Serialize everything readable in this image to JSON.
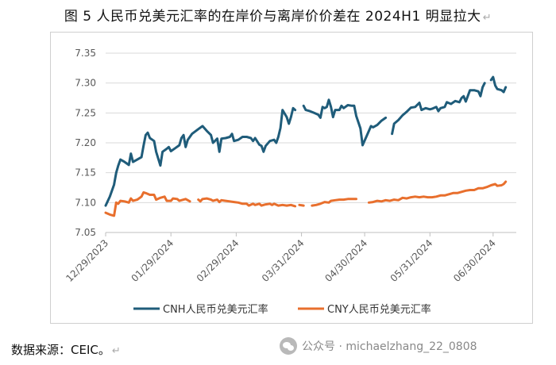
{
  "title": "图 5   人民币兑美元汇率的在岸价与离岸价价差在 2024H1 明显拉大",
  "source": "数据来源：CEIC。",
  "watermark": "公众号 · michaelzhang_22_0808",
  "chart_data": {
    "type": "line",
    "x_tick_labels": [
      "12/29/2023",
      "01/29/2024",
      "02/29/2024",
      "03/31/2024",
      "04/30/2024",
      "05/31/2024",
      "06/30/2024"
    ],
    "x_tick_days": [
      0,
      31,
      62,
      93,
      123,
      154,
      184
    ],
    "xlim_days": [
      0,
      195
    ],
    "y_ticks": [
      7.05,
      7.1,
      7.15,
      7.2,
      7.25,
      7.3,
      7.35
    ],
    "y_tick_labels": [
      "7.05",
      "7.10",
      "7.15",
      "7.20",
      "7.25",
      "7.30",
      "7.35"
    ],
    "ylim": [
      7.05,
      7.35
    ],
    "grid": "horizontal",
    "legend_position": "bottom",
    "series": [
      {
        "name": "CNH人民币兑美元汇率",
        "color": "#1f5c7a",
        "segments": [
          [
            [
              0,
              7.095
            ],
            [
              2,
              7.11
            ],
            [
              4,
              7.13
            ],
            [
              5,
              7.15
            ],
            [
              6,
              7.162
            ],
            [
              7,
              7.172
            ],
            [
              9,
              7.168
            ],
            [
              11,
              7.163
            ],
            [
              12,
              7.182
            ],
            [
              13,
              7.168
            ],
            [
              15,
              7.172
            ],
            [
              17,
              7.176
            ],
            [
              18,
              7.195
            ],
            [
              19,
              7.213
            ],
            [
              20,
              7.217
            ],
            [
              21,
              7.208
            ],
            [
              23,
              7.203
            ],
            [
              24,
              7.185
            ],
            [
              26,
              7.162
            ],
            [
              27,
              7.185
            ],
            [
              29,
              7.19
            ],
            [
              30,
              7.193
            ],
            [
              31,
              7.186
            ],
            [
              33,
              7.191
            ],
            [
              35,
              7.196
            ],
            [
              36,
              7.208
            ],
            [
              37,
              7.213
            ],
            [
              38,
              7.193
            ],
            [
              39,
              7.205
            ],
            [
              41,
              7.215
            ],
            [
              44,
              7.223
            ],
            [
              46,
              7.228
            ],
            [
              48,
              7.22
            ],
            [
              50,
              7.213
            ],
            [
              51,
              7.2
            ],
            [
              53,
              7.207
            ],
            [
              54,
              7.185
            ],
            [
              55,
              7.207
            ],
            [
              57,
              7.208
            ],
            [
              59,
              7.21
            ],
            [
              60,
              7.215
            ],
            [
              61,
              7.203
            ],
            [
              63,
              7.205
            ],
            [
              65,
              7.21
            ],
            [
              67,
              7.21
            ],
            [
              69,
              7.208
            ],
            [
              70,
              7.203
            ],
            [
              71,
              7.208
            ],
            [
              73,
              7.197
            ],
            [
              74,
              7.195
            ],
            [
              75,
              7.185
            ],
            [
              76,
              7.195
            ],
            [
              78,
              7.203
            ],
            [
              80,
              7.205
            ],
            [
              81,
              7.2
            ],
            [
              82,
              7.21
            ],
            [
              83,
              7.225
            ],
            [
              84,
              7.255
            ],
            [
              86,
              7.243
            ],
            [
              87,
              7.232
            ],
            [
              88,
              7.243
            ],
            [
              89,
              7.258
            ],
            [
              90,
              7.255
            ]
          ],
          [
            [
              94,
              7.262
            ],
            [
              95,
              7.255
            ],
            [
              97,
              7.253
            ],
            [
              99,
              7.25
            ],
            [
              101,
              7.247
            ],
            [
              102,
              7.242
            ],
            [
              103,
              7.26
            ],
            [
              104,
              7.258
            ],
            [
              105,
              7.26
            ],
            [
              106,
              7.272
            ],
            [
              107,
              7.26
            ],
            [
              108,
              7.243
            ],
            [
              109,
              7.255
            ],
            [
              111,
              7.255
            ],
            [
              112,
              7.262
            ],
            [
              113,
              7.258
            ],
            [
              115,
              7.263
            ],
            [
              117,
              7.262
            ],
            [
              118,
              7.262
            ],
            [
              119,
              7.245
            ],
            [
              121,
              7.224
            ],
            [
              122,
              7.196
            ],
            [
              124,
              7.212
            ],
            [
              126,
              7.228
            ],
            [
              127,
              7.226
            ],
            [
              129,
              7.23
            ],
            [
              131,
              7.237
            ],
            [
              133,
              7.242
            ]
          ],
          [
            [
              136,
              7.215
            ],
            [
              137,
              7.232
            ],
            [
              139,
              7.238
            ],
            [
              141,
              7.246
            ],
            [
              143,
              7.252
            ],
            [
              145,
              7.259
            ],
            [
              147,
              7.26
            ],
            [
              149,
              7.267
            ],
            [
              150,
              7.255
            ],
            [
              152,
              7.258
            ],
            [
              154,
              7.256
            ],
            [
              155,
              7.257
            ],
            [
              157,
              7.26
            ],
            [
              158,
              7.253
            ],
            [
              159,
              7.258
            ],
            [
              161,
              7.26
            ],
            [
              162,
              7.268
            ],
            [
              164,
              7.265
            ],
            [
              166,
              7.27
            ],
            [
              168,
              7.268
            ],
            [
              169,
              7.275
            ],
            [
              170,
              7.278
            ],
            [
              171,
              7.269
            ],
            [
              173,
              7.288
            ],
            [
              175,
              7.288
            ],
            [
              177,
              7.286
            ],
            [
              178,
              7.278
            ],
            [
              179,
              7.293
            ],
            [
              180,
              7.3
            ]
          ],
          [
            [
              183,
              7.305
            ],
            [
              184,
              7.31
            ],
            [
              185,
              7.296
            ],
            [
              186,
              7.29
            ],
            [
              188,
              7.288
            ],
            [
              189,
              7.285
            ],
            [
              190,
              7.293
            ]
          ]
        ]
      },
      {
        "name": "CNY人民币兑美元汇率",
        "color": "#e86f2d",
        "segments": [
          [
            [
              0,
              7.083
            ],
            [
              2,
              7.08
            ],
            [
              4,
              7.078
            ],
            [
              5,
              7.1
            ],
            [
              6,
              7.098
            ],
            [
              7,
              7.103
            ],
            [
              9,
              7.102
            ],
            [
              11,
              7.1
            ],
            [
              12,
              7.107
            ],
            [
              13,
              7.103
            ],
            [
              15,
              7.105
            ],
            [
              17,
              7.11
            ],
            [
              18,
              7.117
            ],
            [
              19,
              7.116
            ],
            [
              21,
              7.113
            ],
            [
              23,
              7.113
            ],
            [
              24,
              7.105
            ],
            [
              26,
              7.108
            ],
            [
              28,
              7.11
            ],
            [
              29,
              7.103
            ],
            [
              31,
              7.103
            ],
            [
              32,
              7.107
            ],
            [
              34,
              7.106
            ],
            [
              35,
              7.103
            ],
            [
              36,
              7.104
            ],
            [
              38,
              7.106
            ],
            [
              40,
              7.102
            ]
          ],
          [
            [
              44,
              7.105
            ],
            [
              45,
              7.102
            ],
            [
              46,
              7.106
            ],
            [
              48,
              7.107
            ],
            [
              50,
              7.105
            ],
            [
              51,
              7.103
            ],
            [
              53,
              7.105
            ],
            [
              54,
              7.101
            ],
            [
              55,
              7.104
            ],
            [
              57,
              7.103
            ],
            [
              59,
              7.102
            ],
            [
              61,
              7.101
            ],
            [
              63,
              7.1
            ],
            [
              65,
              7.098
            ],
            [
              67,
              7.098
            ],
            [
              68,
              7.095
            ],
            [
              70,
              7.098
            ],
            [
              71,
              7.096
            ],
            [
              73,
              7.098
            ],
            [
              74,
              7.095
            ],
            [
              76,
              7.097
            ],
            [
              78,
              7.098
            ],
            [
              79,
              7.096
            ],
            [
              80,
              7.098
            ],
            [
              82,
              7.095
            ],
            [
              84,
              7.096
            ],
            [
              86,
              7.095
            ],
            [
              88,
              7.096
            ],
            [
              90,
              7.094
            ]
          ],
          [
            [
              92,
              7.096
            ],
            [
              94,
              7.095
            ]
          ],
          [
            [
              98,
              7.095
            ],
            [
              100,
              7.096
            ],
            [
              102,
              7.098
            ],
            [
              104,
              7.101
            ],
            [
              106,
              7.1
            ],
            [
              107,
              7.103
            ],
            [
              109,
              7.104
            ],
            [
              111,
              7.105
            ],
            [
              113,
              7.105
            ],
            [
              115,
              7.106
            ],
            [
              117,
              7.106
            ],
            [
              119,
              7.106
            ]
          ],
          [
            [
              125,
              7.1
            ],
            [
              127,
              7.101
            ],
            [
              129,
              7.103
            ],
            [
              131,
              7.102
            ],
            [
              133,
              7.104
            ],
            [
              135,
              7.103
            ],
            [
              137,
              7.105
            ],
            [
              139,
              7.104
            ],
            [
              141,
              7.108
            ],
            [
              143,
              7.107
            ],
            [
              145,
              7.109
            ],
            [
              147,
              7.11
            ],
            [
              149,
              7.109
            ],
            [
              151,
              7.11
            ],
            [
              153,
              7.109
            ],
            [
              155,
              7.109
            ],
            [
              157,
              7.11
            ],
            [
              159,
              7.112
            ],
            [
              161,
              7.112
            ],
            [
              163,
              7.114
            ],
            [
              165,
              7.116
            ],
            [
              167,
              7.116
            ],
            [
              169,
              7.118
            ],
            [
              171,
              7.12
            ],
            [
              173,
              7.121
            ],
            [
              175,
              7.121
            ],
            [
              177,
              7.124
            ],
            [
              179,
              7.124
            ],
            [
              181,
              7.126
            ],
            [
              183,
              7.129
            ],
            [
              185,
              7.131
            ],
            [
              186,
              7.128
            ],
            [
              188,
              7.129
            ],
            [
              189,
              7.131
            ],
            [
              190,
              7.135
            ]
          ]
        ]
      }
    ]
  }
}
